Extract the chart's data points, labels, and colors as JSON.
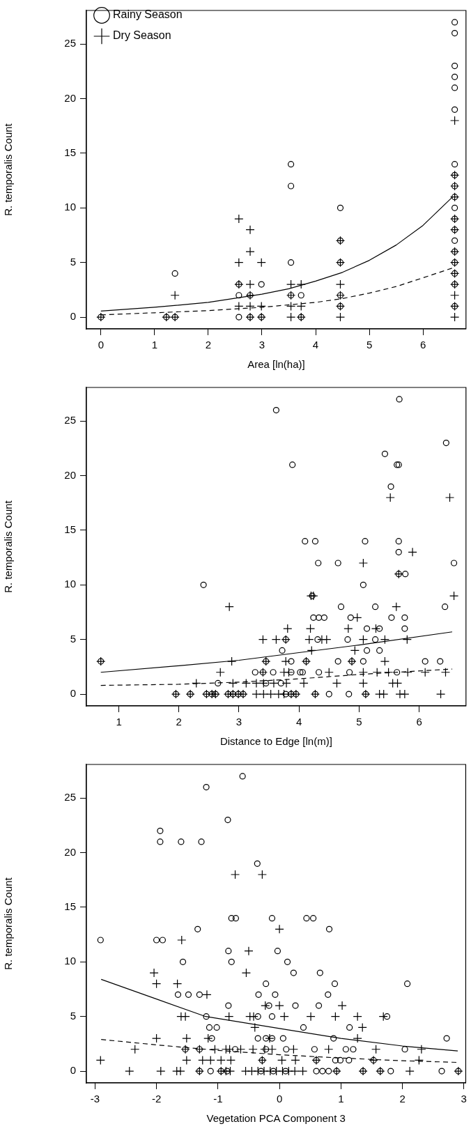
{
  "chart_data": [
    {
      "type": "scatter",
      "xlabel": "Area [ln(ha)]",
      "ylabel": "R. temporalis Count",
      "xlim": [
        -0.27,
        6.8
      ],
      "ylim": [
        -1.08,
        28.08
      ],
      "xticks": [
        0,
        1,
        2,
        3,
        4,
        5,
        6
      ],
      "yticks": [
        0,
        5,
        10,
        15,
        20,
        25
      ],
      "grid": false,
      "legend": "top left",
      "series": [
        {
          "name": "Rainy Season",
          "type": "scatter",
          "marker": "circle",
          "color": "#000000",
          "x": [
            0,
            1.22,
            1.38,
            1.38,
            2.57,
            2.57,
            2.57,
            2.78,
            2.78,
            2.99,
            2.99,
            3.54,
            3.54,
            3.54,
            3.54,
            3.73,
            3.73,
            4.46,
            4.46,
            4.46,
            4.46,
            4.46,
            6.59,
            6.59,
            6.59,
            6.59,
            6.59,
            6.59,
            6.59,
            6.59,
            6.59,
            6.59,
            6.59,
            6.59,
            6.59,
            6.59,
            6.59,
            6.59,
            6.59,
            6.59,
            6.59
          ],
          "values": [
            0,
            0,
            0,
            4,
            0,
            2,
            3,
            0,
            2,
            0,
            3,
            2,
            5,
            12,
            14,
            0,
            2,
            10,
            7,
            5,
            2,
            1,
            27,
            26,
            23,
            22,
            21,
            19,
            14,
            13,
            12,
            11,
            10,
            9,
            8,
            7,
            6,
            5,
            4,
            3,
            1
          ]
        },
        {
          "name": "Dry Season",
          "type": "scatter",
          "marker": "cross",
          "color": "#000000",
          "x": [
            0,
            1.22,
            1.38,
            1.38,
            2.57,
            2.57,
            2.57,
            2.57,
            2.78,
            2.78,
            2.78,
            2.78,
            2.78,
            2.78,
            2.99,
            2.99,
            2.99,
            3.54,
            3.54,
            3.54,
            3.54,
            3.73,
            3.73,
            3.73,
            4.46,
            4.46,
            4.46,
            4.46,
            4.46,
            4.46,
            6.59,
            6.59,
            6.59,
            6.59,
            6.59,
            6.59,
            6.59,
            6.59,
            6.59,
            6.59,
            6.59,
            6.59,
            6.59
          ],
          "values": [
            0,
            0,
            0,
            2,
            9,
            5,
            3,
            1,
            8,
            6,
            3,
            1,
            2,
            0,
            5,
            1,
            0,
            3,
            2,
            1,
            0,
            3,
            1,
            0,
            7,
            5,
            3,
            2,
            1,
            0,
            18,
            13,
            12,
            11,
            9,
            8,
            6,
            5,
            4,
            3,
            2,
            1,
            0
          ]
        },
        {
          "type": "line",
          "line_style": "solid",
          "marker": "none",
          "color": "#000000",
          "x": [
            0,
            1,
            2,
            3,
            3.5,
            4,
            4.5,
            5,
            5.5,
            6,
            6.55
          ],
          "values": [
            0.55,
            0.9,
            1.35,
            2.1,
            2.6,
            3.3,
            4.1,
            5.2,
            6.6,
            8.4,
            11
          ]
        },
        {
          "type": "line",
          "line_style": "dashed",
          "marker": "none",
          "color": "#000000",
          "x": [
            0,
            1,
            2,
            3,
            4,
            4.5,
            5,
            5.5,
            6,
            6.55
          ],
          "values": [
            0.2,
            0.4,
            0.6,
            0.9,
            1.35,
            1.7,
            2.2,
            2.8,
            3.6,
            4.5
          ]
        }
      ]
    },
    {
      "type": "scatter",
      "xlabel": "Distance to Edge [ln(m)]",
      "ylabel": "R. temporalis Count",
      "xlim": [
        0.46,
        6.78
      ],
      "ylim": [
        -1.08,
        28.08
      ],
      "xticks": [
        1,
        2,
        3,
        4,
        5,
        6
      ],
      "yticks": [
        0,
        5,
        10,
        15,
        20,
        25
      ],
      "grid": false,
      "series": [
        {
          "type": "scatter",
          "marker": "circle",
          "color": "#000000",
          "x": [
            3.62,
            5.67,
            6.45,
            5.43,
            5.63,
            5.66,
            3.89,
            5.53,
            4.1,
            4.27,
            5.1,
            5.66,
            5.66,
            4.32,
            4.65,
            6.58,
            5.66,
            5.77,
            2.41,
            5.07,
            4.22,
            4.7,
            5.27,
            6.43,
            4.24,
            4.33,
            4.42,
            4.86,
            5.54,
            5.76,
            5.13,
            5.34,
            5.76,
            3.78,
            4.31,
            4.81,
            5.27,
            3.72,
            5.13,
            5.34,
            0.7,
            3.45,
            3.87,
            4.12,
            4.65,
            4.88,
            5.07,
            6.1,
            6.35,
            3.27,
            3.4,
            3.57,
            3.87,
            4.02,
            4.06,
            4.33,
            4.84,
            5.63,
            2.65,
            3.45,
            3.7,
            1.95,
            2.19,
            2.46,
            2.55,
            2.61,
            2.82,
            2.9,
            2.99,
            3.07,
            3.78,
            3.87,
            3.95,
            4.27,
            4.5,
            4.83,
            5.11
          ],
          "values": [
            26,
            27,
            23,
            22,
            21,
            21,
            21,
            19,
            14,
            14,
            14,
            14,
            13,
            12,
            12,
            12,
            11,
            11,
            10,
            10,
            9,
            8,
            8,
            8,
            7,
            7,
            7,
            7,
            7,
            7,
            6,
            6,
            6,
            5,
            5,
            5,
            5,
            4,
            4,
            4,
            3,
            3,
            3,
            3,
            3,
            3,
            3,
            3,
            3,
            2,
            2,
            2,
            2,
            2,
            2,
            2,
            2,
            2,
            1,
            1,
            1,
            0,
            0,
            0,
            0,
            0,
            0,
            0,
            0,
            0,
            0,
            0,
            0,
            0,
            0,
            0,
            0
          ]
        },
        {
          "type": "scatter",
          "marker": "cross",
          "color": "#000000",
          "x": [
            5.52,
            6.51,
            5.89,
            5.07,
            5.66,
            4.2,
            4.24,
            6.58,
            2.84,
            5.62,
            4.97,
            3.81,
            4.19,
            4.82,
            5.28,
            3.4,
            3.62,
            3.78,
            4.17,
            4.38,
            4.46,
            5.07,
            5.43,
            5.8,
            4.21,
            4.93,
            0.7,
            2.88,
            3.45,
            3.78,
            4.12,
            4.88,
            5.43,
            2.69,
            3.4,
            3.75,
            3.83,
            4.5,
            5.07,
            5.3,
            5.49,
            5.81,
            6.1,
            6.44,
            2.29,
            2.9,
            3.12,
            3.29,
            3.41,
            3.58,
            3.79,
            4.08,
            4.63,
            5.07,
            5.56,
            5.64,
            1.95,
            2.19,
            2.46,
            2.55,
            2.61,
            2.82,
            2.9,
            2.99,
            3.07,
            3.29,
            3.41,
            3.53,
            3.66,
            3.75,
            3.87,
            3.95,
            4.27,
            5.11,
            5.34,
            5.41,
            5.68,
            5.76,
            6.36
          ],
          "values": [
            18,
            18,
            13,
            12,
            11,
            9,
            9,
            9,
            8,
            8,
            7,
            6,
            6,
            6,
            6,
            5,
            5,
            5,
            5,
            5,
            5,
            5,
            5,
            5,
            4,
            4,
            3,
            3,
            3,
            3,
            3,
            3,
            3,
            2,
            2,
            2,
            2,
            2,
            2,
            2,
            2,
            2,
            2,
            2,
            1,
            1,
            1,
            1,
            1,
            1,
            1,
            1,
            1,
            1,
            1,
            1,
            0,
            0,
            0,
            0,
            0,
            0,
            0,
            0,
            0,
            0,
            0,
            0,
            0,
            0,
            0,
            0,
            0,
            0,
            0,
            0,
            0,
            0,
            0
          ]
        },
        {
          "type": "line",
          "line_style": "solid",
          "marker": "none",
          "color": "#000000",
          "x": [
            0.7,
            2,
            3,
            4,
            5,
            6.55
          ],
          "values": [
            2,
            2.6,
            3.1,
            3.8,
            4.5,
            5.7
          ]
        },
        {
          "type": "line",
          "line_style": "dashed",
          "marker": "none",
          "color": "#000000",
          "x": [
            0.7,
            2,
            3,
            4,
            5,
            6.55
          ],
          "values": [
            0.8,
            0.9,
            1.1,
            1.4,
            1.8,
            2.3
          ]
        }
      ]
    },
    {
      "type": "scatter",
      "xlabel": "Vegetation PCA Component 3",
      "ylabel": "R. temporalis Count",
      "xlim": [
        -3.14,
        3.03
      ],
      "ylim": [
        -1.08,
        28.08
      ],
      "xticks": [
        -3,
        -2,
        -1,
        0,
        1,
        2,
        3
      ],
      "yticks": [
        0,
        5,
        10,
        15,
        20,
        25
      ],
      "grid": false,
      "series": [
        {
          "type": "scatter",
          "marker": "circle",
          "color": "#000000",
          "x": [
            -0.6,
            -1.19,
            -0.84,
            -1.94,
            -1.94,
            -1.6,
            -1.27,
            -0.36,
            -0.78,
            -0.71,
            -0.12,
            0.44,
            0.55,
            -1.33,
            0.81,
            -2.91,
            -2.0,
            -1.9,
            -0.83,
            -0.03,
            -1.57,
            -0.78,
            0.13,
            0.23,
            0.66,
            -0.22,
            0.9,
            2.08,
            -1.65,
            -1.48,
            -1.3,
            -0.34,
            -0.07,
            0.79,
            -0.83,
            -0.17,
            0.26,
            0.64,
            -1.19,
            -0.35,
            -0.12,
            1.75,
            -1.14,
            -1.02,
            0.39,
            1.14,
            -1.1,
            -0.35,
            -0.22,
            -0.12,
            0.06,
            0.88,
            2.72,
            -1.53,
            -1.3,
            -0.72,
            -0.22,
            0.11,
            0.57,
            1.08,
            1.2,
            2.04,
            -0.28,
            0.6,
            0.91,
            0.99,
            1.13,
            1.53,
            -1.3,
            -1.12,
            -0.95,
            -0.85,
            -0.3,
            -0.1,
            0.1,
            0.6,
            0.7,
            0.8,
            0.93,
            1.36,
            1.64,
            1.81,
            2.64,
            2.91
          ],
          "values": [
            27,
            26,
            23,
            22,
            21,
            21,
            21,
            19,
            14,
            14,
            14,
            14,
            14,
            13,
            13,
            12,
            12,
            12,
            11,
            11,
            10,
            10,
            10,
            9,
            9,
            8,
            8,
            8,
            7,
            7,
            7,
            7,
            7,
            7,
            6,
            6,
            6,
            6,
            5,
            5,
            5,
            5,
            4,
            4,
            4,
            4,
            3,
            3,
            3,
            3,
            3,
            3,
            3,
            2,
            2,
            2,
            2,
            2,
            2,
            2,
            2,
            2,
            1,
            1,
            1,
            1,
            1,
            1,
            0,
            0,
            0,
            0,
            0,
            0,
            0,
            0,
            0,
            0,
            0,
            0,
            0,
            0,
            0,
            0
          ]
        },
        {
          "type": "scatter",
          "marker": "cross",
          "color": "#000000",
          "x": [
            -0.72,
            -0.28,
            0.0,
            -1.59,
            -0.5,
            -2.04,
            -0.54,
            -2.0,
            -1.66,
            -1.18,
            -0.23,
            0.0,
            1.02,
            -1.6,
            -1.53,
            -0.82,
            -0.48,
            -0.42,
            0.08,
            0.51,
            0.91,
            1.27,
            1.69,
            -0.4,
            1.35,
            -2.0,
            -1.51,
            -1.16,
            -0.16,
            1.27,
            -2.35,
            -1.53,
            -1.3,
            -1.05,
            -0.87,
            -0.81,
            -0.63,
            -0.43,
            -0.24,
            -0.12,
            0.23,
            0.8,
            1.57,
            2.31,
            -2.91,
            -1.51,
            -1.25,
            -1.12,
            -0.95,
            -0.79,
            -0.28,
            0.04,
            0.26,
            0.6,
            1.53,
            2.27,
            -2.44,
            -1.93,
            -1.67,
            -1.61,
            -1.3,
            -0.95,
            -0.87,
            -0.8,
            -0.55,
            -0.45,
            -0.35,
            -0.25,
            -0.15,
            -0.05,
            0.05,
            0.15,
            0.25,
            0.38,
            0.93,
            1.36,
            1.64,
            2.12,
            2.91
          ],
          "values": [
            18,
            18,
            13,
            12,
            11,
            9,
            9,
            8,
            8,
            7,
            6,
            6,
            6,
            5,
            5,
            5,
            5,
            5,
            5,
            5,
            5,
            5,
            5,
            4,
            4,
            3,
            3,
            3,
            3,
            3,
            2,
            2,
            2,
            2,
            2,
            2,
            2,
            2,
            2,
            2,
            2,
            2,
            2,
            2,
            1,
            1,
            1,
            1,
            1,
            1,
            1,
            1,
            1,
            1,
            1,
            1,
            0,
            0,
            0,
            0,
            0,
            0,
            0,
            0,
            0,
            0,
            0,
            0,
            0,
            0,
            0,
            0,
            0,
            0,
            0,
            0,
            0,
            0,
            0
          ]
        },
        {
          "type": "line",
          "line_style": "solid",
          "marker": "none",
          "color": "#000000",
          "x": [
            -2.9,
            -2,
            -1.2,
            0,
            1,
            2,
            2.9
          ],
          "values": [
            8.4,
            6.6,
            5.0,
            3.9,
            3.0,
            2.3,
            1.85
          ]
        },
        {
          "type": "line",
          "line_style": "dashed",
          "marker": "none",
          "color": "#000000",
          "x": [
            -2.9,
            -2,
            -1,
            0,
            1,
            2,
            2.9
          ],
          "values": [
            2.9,
            2.4,
            1.9,
            1.5,
            1.2,
            0.95,
            0.8
          ]
        }
      ]
    }
  ]
}
